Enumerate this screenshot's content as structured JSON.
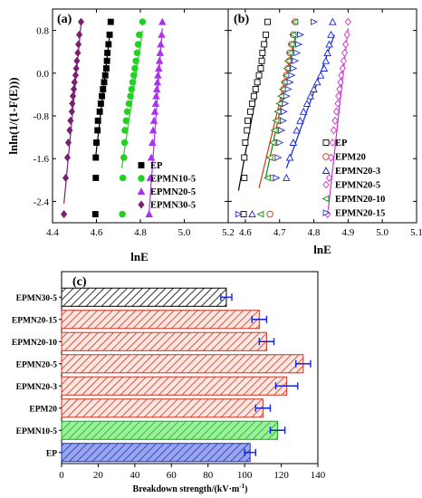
{
  "chart_data": [
    {
      "panel": "(a)",
      "type": "scatter",
      "ylabel": "lnln(1/(1-F(E)))",
      "xlabel": "lnE",
      "xlim": [
        4.4,
        5.2
      ],
      "ylim": [
        -2.8,
        1.2
      ],
      "xticks": [
        "4.4",
        "4.6",
        "4.8",
        "5.0",
        "5.2"
      ],
      "yticks": [
        "0.8",
        "0.0",
        "-0.8",
        "-1.6",
        "-2.4"
      ],
      "legend_position": "bottom-right",
      "series": [
        {
          "name": "EP",
          "marker": "square",
          "color": "#000000",
          "points": [
            [
              4.595,
              -2.64
            ],
            [
              4.597,
              -1.96
            ],
            [
              4.597,
              -1.58
            ],
            [
              4.6,
              -1.3
            ],
            [
              4.605,
              -1.07
            ],
            [
              4.607,
              -0.89
            ],
            [
              4.615,
              -0.72
            ],
            [
              4.62,
              -0.57
            ],
            [
              4.625,
              -0.43
            ],
            [
              4.63,
              -0.3
            ],
            [
              4.635,
              -0.17
            ],
            [
              4.64,
              -0.04
            ],
            [
              4.645,
              0.09
            ],
            [
              4.648,
              0.23
            ],
            [
              4.65,
              0.38
            ],
            [
              4.655,
              0.54
            ],
            [
              4.66,
              0.72
            ],
            [
              4.665,
              0.96
            ]
          ],
          "fit": [
            [
              4.595,
              -1.62
            ],
            [
              4.66,
              0.7
            ]
          ]
        },
        {
          "name": "EPMN10-5",
          "marker": "circle",
          "color": "#22d122",
          "points": [
            [
              4.718,
              -2.64
            ],
            [
              4.72,
              -1.96
            ],
            [
              4.725,
              -1.58
            ],
            [
              4.728,
              -1.3
            ],
            [
              4.73,
              -1.07
            ],
            [
              4.735,
              -0.89
            ],
            [
              4.74,
              -0.72
            ],
            [
              4.748,
              -0.57
            ],
            [
              4.755,
              -0.43
            ],
            [
              4.76,
              -0.3
            ],
            [
              4.765,
              -0.17
            ],
            [
              4.77,
              -0.04
            ],
            [
              4.775,
              0.09
            ],
            [
              4.78,
              0.23
            ],
            [
              4.785,
              0.38
            ],
            [
              4.79,
              0.54
            ],
            [
              4.795,
              0.72
            ],
            [
              4.81,
              0.96
            ]
          ],
          "fit": [
            [
              4.715,
              -1.78
            ],
            [
              4.81,
              0.8
            ]
          ]
        },
        {
          "name": "EPMN20-5",
          "marker": "triangle",
          "color": "#aa33ee",
          "points": [
            [
              4.84,
              -2.64
            ],
            [
              4.845,
              -1.96
            ],
            [
              4.85,
              -1.58
            ],
            [
              4.855,
              -1.3
            ],
            [
              4.858,
              -1.07
            ],
            [
              4.862,
              -0.89
            ],
            [
              4.866,
              -0.72
            ],
            [
              4.87,
              -0.57
            ],
            [
              4.872,
              -0.43
            ],
            [
              4.875,
              -0.3
            ],
            [
              4.878,
              -0.17
            ],
            [
              4.88,
              -0.04
            ],
            [
              4.884,
              0.09
            ],
            [
              4.887,
              0.23
            ],
            [
              4.89,
              0.38
            ],
            [
              4.893,
              0.54
            ],
            [
              4.897,
              0.72
            ],
            [
              4.9,
              0.96
            ]
          ],
          "fit": [
            [
              4.84,
              -2.6
            ],
            [
              4.9,
              0.84
            ]
          ]
        },
        {
          "name": "EPMN30-5",
          "marker": "diamond",
          "color": "#7a2070",
          "points": [
            [
              4.452,
              -2.64
            ],
            [
              4.46,
              -1.96
            ],
            [
              4.468,
              -1.58
            ],
            [
              4.472,
              -1.3
            ],
            [
              4.478,
              -1.07
            ],
            [
              4.482,
              -0.89
            ],
            [
              4.488,
              -0.72
            ],
            [
              4.49,
              -0.57
            ],
            [
              4.493,
              -0.43
            ],
            [
              4.497,
              -0.3
            ],
            [
              4.5,
              -0.17
            ],
            [
              4.505,
              -0.04
            ],
            [
              4.508,
              0.09
            ],
            [
              4.511,
              0.23
            ],
            [
              4.515,
              0.38
            ],
            [
              4.518,
              0.54
            ],
            [
              4.522,
              0.72
            ],
            [
              4.53,
              0.96
            ]
          ],
          "fit": [
            [
              4.452,
              -2.44
            ],
            [
              4.53,
              0.92
            ]
          ]
        }
      ]
    },
    {
      "panel": "(b)",
      "type": "scatter",
      "xlabel": "lnE",
      "xlim": [
        4.55,
        5.1
      ],
      "ylim": [
        -2.8,
        1.2
      ],
      "xticks": [
        "4.6",
        "4.7",
        "4.8",
        "4.9",
        "5.0",
        "5.1"
      ],
      "legend_position": "bottom-right",
      "series": [
        {
          "name": "EP",
          "marker": "square-open",
          "color": "#000000",
          "points": [
            [
              4.595,
              -2.64
            ],
            [
              4.597,
              -1.96
            ],
            [
              4.597,
              -1.58
            ],
            [
              4.6,
              -1.3
            ],
            [
              4.605,
              -1.07
            ],
            [
              4.607,
              -0.89
            ],
            [
              4.615,
              -0.72
            ],
            [
              4.62,
              -0.57
            ],
            [
              4.625,
              -0.43
            ],
            [
              4.63,
              -0.3
            ],
            [
              4.635,
              -0.17
            ],
            [
              4.64,
              -0.04
            ],
            [
              4.645,
              0.09
            ],
            [
              4.648,
              0.23
            ],
            [
              4.65,
              0.38
            ],
            [
              4.655,
              0.54
            ],
            [
              4.66,
              0.72
            ],
            [
              4.665,
              0.96
            ]
          ],
          "fit": [
            [
              4.58,
              -2.2
            ],
            [
              4.665,
              0.76
            ]
          ]
        },
        {
          "name": "EPM20",
          "marker": "circle-open",
          "color": "#dd3311",
          "points": [
            [
              4.672,
              -2.64
            ],
            [
              4.68,
              -1.96
            ],
            [
              4.685,
              -1.58
            ],
            [
              4.69,
              -1.3
            ],
            [
              4.695,
              -1.07
            ],
            [
              4.7,
              -0.89
            ],
            [
              4.703,
              -0.72
            ],
            [
              4.706,
              -0.57
            ],
            [
              4.71,
              -0.43
            ],
            [
              4.712,
              -0.3
            ],
            [
              4.716,
              -0.17
            ],
            [
              4.72,
              -0.04
            ],
            [
              4.725,
              0.09
            ],
            [
              4.728,
              0.23
            ],
            [
              4.73,
              0.38
            ],
            [
              4.735,
              0.54
            ],
            [
              4.74,
              0.72
            ],
            [
              4.745,
              0.96
            ]
          ],
          "fit": [
            [
              4.64,
              -2.15
            ],
            [
              4.745,
              0.66
            ]
          ]
        },
        {
          "name": "EPMN20-3",
          "marker": "triangle-open",
          "color": "#1122dd",
          "points": [
            [
              4.62,
              -2.64
            ],
            [
              4.72,
              -1.96
            ],
            [
              4.73,
              -1.58
            ],
            [
              4.74,
              -1.3
            ],
            [
              4.75,
              -1.07
            ],
            [
              4.76,
              -0.89
            ],
            [
              4.77,
              -0.72
            ],
            [
              4.78,
              -0.57
            ],
            [
              4.79,
              -0.43
            ],
            [
              4.8,
              -0.3
            ],
            [
              4.81,
              -0.17
            ],
            [
              4.82,
              -0.04
            ],
            [
              4.83,
              0.09
            ],
            [
              4.835,
              0.23
            ],
            [
              4.84,
              0.38
            ],
            [
              4.845,
              0.54
            ],
            [
              4.85,
              0.72
            ],
            [
              4.855,
              0.96
            ]
          ],
          "fit": [
            [
              4.72,
              -1.78
            ],
            [
              4.86,
              0.72
            ]
          ]
        },
        {
          "name": "EPMN20-5",
          "marker": "diamond-open",
          "color": "#cc33cc",
          "points": [
            [
              4.84,
              -2.64
            ],
            [
              4.845,
              -1.96
            ],
            [
              4.85,
              -1.58
            ],
            [
              4.855,
              -1.3
            ],
            [
              4.858,
              -1.07
            ],
            [
              4.862,
              -0.89
            ],
            [
              4.866,
              -0.72
            ],
            [
              4.87,
              -0.57
            ],
            [
              4.872,
              -0.43
            ],
            [
              4.875,
              -0.3
            ],
            [
              4.878,
              -0.17
            ],
            [
              4.88,
              -0.04
            ],
            [
              4.884,
              0.09
            ],
            [
              4.887,
              0.23
            ],
            [
              4.89,
              0.38
            ],
            [
              4.893,
              0.54
            ],
            [
              4.897,
              0.72
            ],
            [
              4.9,
              0.96
            ]
          ],
          "fit": [
            [
              4.842,
              -2.56
            ],
            [
              4.9,
              0.84
            ]
          ]
        },
        {
          "name": "EPMN20-10",
          "marker": "triangle-left-open",
          "color": "#118811",
          "points": [
            [
              4.645,
              -2.64
            ],
            [
              4.665,
              -1.96
            ],
            [
              4.672,
              -1.58
            ],
            [
              4.68,
              -1.3
            ],
            [
              4.685,
              -1.07
            ],
            [
              4.69,
              -0.89
            ],
            [
              4.695,
              -0.72
            ],
            [
              4.7,
              -0.57
            ],
            [
              4.705,
              -0.43
            ],
            [
              4.71,
              -0.3
            ],
            [
              4.715,
              -0.17
            ],
            [
              4.72,
              -0.04
            ],
            [
              4.722,
              0.09
            ],
            [
              4.725,
              0.23
            ],
            [
              4.73,
              0.38
            ],
            [
              4.735,
              0.54
            ],
            [
              4.74,
              0.72
            ],
            [
              4.745,
              0.96
            ]
          ],
          "fit": [
            [
              4.66,
              -1.94
            ],
            [
              4.748,
              0.7
            ]
          ]
        },
        {
          "name": "EPMN20-15",
          "marker": "triangle-right-open",
          "color": "#2233cc",
          "points": [
            [
              4.58,
              -2.64
            ],
            [
              4.69,
              -1.96
            ],
            [
              4.695,
              -1.58
            ],
            [
              4.7,
              -1.3
            ],
            [
              4.705,
              -1.07
            ],
            [
              4.71,
              -0.89
            ],
            [
              4.712,
              -0.72
            ],
            [
              4.716,
              -0.57
            ],
            [
              4.72,
              -0.43
            ],
            [
              4.725,
              -0.3
            ],
            [
              4.73,
              -0.17
            ],
            [
              4.735,
              -0.04
            ],
            [
              4.74,
              0.09
            ],
            [
              4.745,
              0.23
            ],
            [
              4.75,
              0.38
            ],
            [
              4.755,
              0.54
            ],
            [
              4.76,
              0.72
            ],
            [
              4.8,
              0.96
            ]
          ]
        }
      ]
    },
    {
      "panel": "(c)",
      "type": "bar",
      "orientation": "horizontal",
      "xlabel": "Breakdown strength/(kV·m",
      "xlabel_sup": "-1",
      "xlabel_close": ")",
      "xlim": [
        0,
        140
      ],
      "xticks": [
        "0",
        "20",
        "40",
        "60",
        "80",
        "100",
        "120",
        "140"
      ],
      "categories": [
        "EPMN30-5",
        "EPMN20-15",
        "EPMN20-10",
        "EPMN20-5",
        "EPMN20-3",
        "EPM20",
        "EPMN10-5",
        "EP"
      ],
      "values": [
        90,
        108,
        112,
        132,
        123,
        110,
        118,
        103
      ],
      "errors": [
        3,
        4,
        4,
        4,
        6,
        4,
        4,
        3
      ],
      "bar_styles": [
        {
          "stroke": "#000000",
          "fill": "#ffffff"
        },
        {
          "stroke": "#cc3322",
          "fill": "#fde0d8"
        },
        {
          "stroke": "#cc3322",
          "fill": "#fde0d8"
        },
        {
          "stroke": "#cc3322",
          "fill": "#fde0d8"
        },
        {
          "stroke": "#cc3322",
          "fill": "#fde0d8"
        },
        {
          "stroke": "#cc3322",
          "fill": "#fde0d8"
        },
        {
          "stroke": "#22aa22",
          "fill": "#88f088"
        },
        {
          "stroke": "#2233bb",
          "fill": "#8899ee"
        }
      ],
      "error_color": "#1122dd"
    }
  ]
}
